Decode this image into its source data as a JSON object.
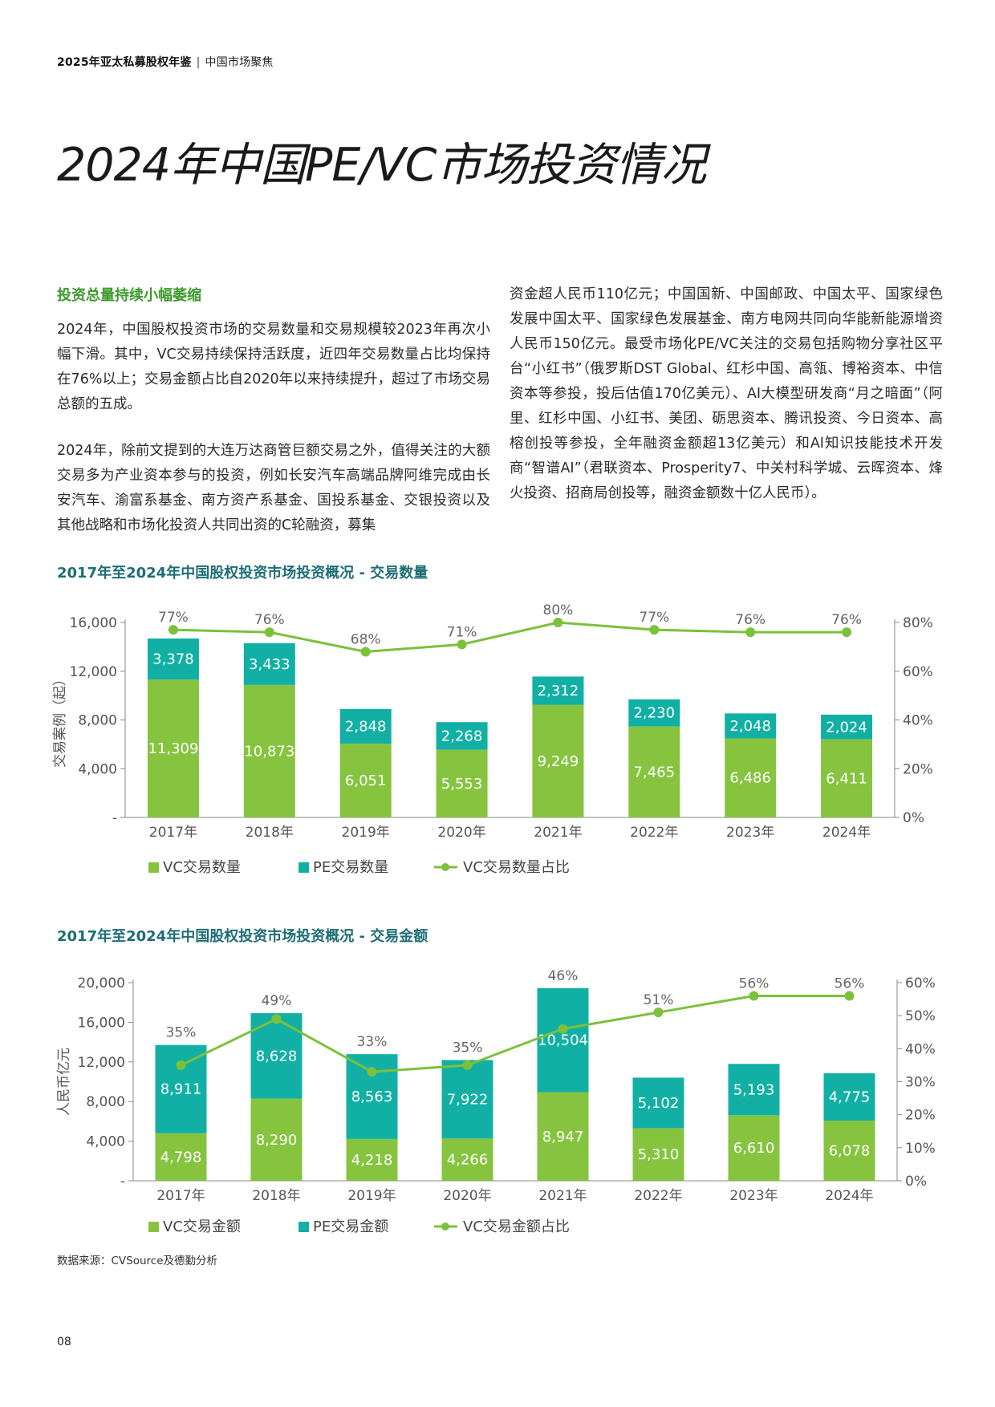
{
  "header": {
    "report": "2025年亚太私募股权年鉴",
    "separator": "|",
    "section": "中国市场聚焦"
  },
  "title": "2024年中国PE/VC市场投资情况",
  "section_heading": "投资总量持续小幅萎缩",
  "paragraphs": [
    "2024年，中国股权投资市场的交易数量和交易规模较2023年再次小幅下滑。其中，VC交易持续保持活跃度，近四年交易数量占比均保持在76%以上；交易金额占比自2020年以来持续提升，超过了市场交易总额的五成。",
    "2024年，除前文提到的大连万达商管巨额交易之外，值得关注的大额交易多为产业资本参与的投资，例如长安汽车高端品牌阿维完成由长安汽车、渝富系基金、南方资产系基金、国投系基金、交银投资以及其他战略和市场化投资人共同出资的C轮融资，募集",
    "资金超人民币110亿元；中国国新、中国邮政、中国太平、国家绿色发展中国太平、国家绿色发展基金、南方电网共同向华能新能源增资人民币150亿元。最受市场化PE/VC关注的交易包括购物分享社区平台“小红书”（俄罗斯DST Global、红杉中国、高瓴、博裕资本、中信资本等参投，投后估值170亿美元）、AI大模型研发商“月之暗面”（阿里、红杉中国、小红书、美团、砺思资本、腾讯投资、今日资本、高榕创投等参投，全年融资金额超13亿美元）和AI知识技能技术开发商“智谱AI”（君联资本、Prosperity7、中关村科学城、云晖资本、烽火投资、招商局创投等，融资金额数十亿人民币）。"
  ],
  "colors": {
    "vc": "#86c440",
    "pe": "#12b0a4",
    "line": "#7cc13a",
    "heading_green": "#3e9a2e",
    "chart_title": "#1d6e74"
  },
  "chart_data": [
    {
      "type": "bar",
      "stacked": true,
      "title": "2017年至2024年中国股权投资市场投资概况 - 交易数量",
      "ylabel": "交易案例（起）",
      "categories": [
        "2017年",
        "2018年",
        "2019年",
        "2020年",
        "2021年",
        "2022年",
        "2023年",
        "2024年"
      ],
      "series": [
        {
          "name": "VC交易数量",
          "kind": "bar",
          "values": [
            11309,
            10873,
            6051,
            5553,
            9249,
            7465,
            6486,
            6411
          ],
          "labels": [
            "11,309",
            "10,873",
            "6,051",
            "5,553",
            "9,249",
            "7,465",
            "6,486",
            "6,411"
          ]
        },
        {
          "name": "PE交易数量",
          "kind": "bar",
          "values": [
            3378,
            3433,
            2848,
            2268,
            2312,
            2230,
            2048,
            2024
          ],
          "labels": [
            "3,378",
            "3,433",
            "2,848",
            "2,268",
            "2,312",
            "2,230",
            "2,048",
            "2,024"
          ]
        },
        {
          "name": "VC交易数量占比",
          "kind": "line",
          "axis": "right",
          "values": [
            77,
            76,
            68,
            71,
            80,
            77,
            76,
            76
          ],
          "labels": [
            "77%",
            "76%",
            "68%",
            "71%",
            "80%",
            "77%",
            "76%",
            "76%"
          ]
        }
      ],
      "ylim": [
        0,
        16000
      ],
      "yticks": [
        0,
        4000,
        8000,
        12000,
        16000
      ],
      "ytick_labels": [
        "-",
        "4,000",
        "8,000",
        "12,000",
        "16,000"
      ],
      "y2lim": [
        0,
        80
      ],
      "y2ticks": [
        0,
        20,
        40,
        60,
        80
      ],
      "y2tick_labels": [
        "0%",
        "20%",
        "40%",
        "60%",
        "80%"
      ],
      "grid": false,
      "legend": "bottom-left"
    },
    {
      "type": "bar",
      "stacked": true,
      "title": "2017年至2024年中国股权投资市场投资概况 - 交易金额",
      "ylabel": "人民币亿元",
      "categories": [
        "2017年",
        "2018年",
        "2019年",
        "2020年",
        "2021年",
        "2022年",
        "2023年",
        "2024年"
      ],
      "series": [
        {
          "name": "VC交易金额",
          "kind": "bar",
          "values": [
            4798,
            8290,
            4218,
            4266,
            8947,
            5310,
            6610,
            6078
          ],
          "labels": [
            "4,798",
            "8,290",
            "4,218",
            "4,266",
            "8,947",
            "5,310",
            "6,610",
            "6,078"
          ]
        },
        {
          "name": "PE交易金额",
          "kind": "bar",
          "values": [
            8911,
            8628,
            8563,
            7922,
            10504,
            5102,
            5193,
            4775
          ],
          "labels": [
            "8,911",
            "8,628",
            "8,563",
            "7,922",
            "10,504",
            "5,102",
            "5,193",
            "4,775"
          ]
        },
        {
          "name": "VC交易金额占比",
          "kind": "line",
          "axis": "right",
          "values": [
            35,
            49,
            33,
            35,
            46,
            51,
            56,
            56
          ],
          "labels": [
            "35%",
            "49%",
            "33%",
            "35%",
            "46%",
            "51%",
            "56%",
            "56%"
          ]
        }
      ],
      "ylim": [
        0,
        20000
      ],
      "yticks": [
        0,
        4000,
        8000,
        12000,
        16000,
        20000
      ],
      "ytick_labels": [
        "-",
        "4,000",
        "8,000",
        "12,000",
        "16,000",
        "20,000"
      ],
      "y2lim": [
        0,
        60
      ],
      "y2ticks": [
        0,
        10,
        20,
        30,
        40,
        50,
        60
      ],
      "y2tick_labels": [
        "0%",
        "10%",
        "20%",
        "30%",
        "40%",
        "50%",
        "60%"
      ],
      "grid": false,
      "legend": "bottom-left"
    }
  ],
  "source": "数据来源：CVSource及德勤分析",
  "page_number": "08"
}
